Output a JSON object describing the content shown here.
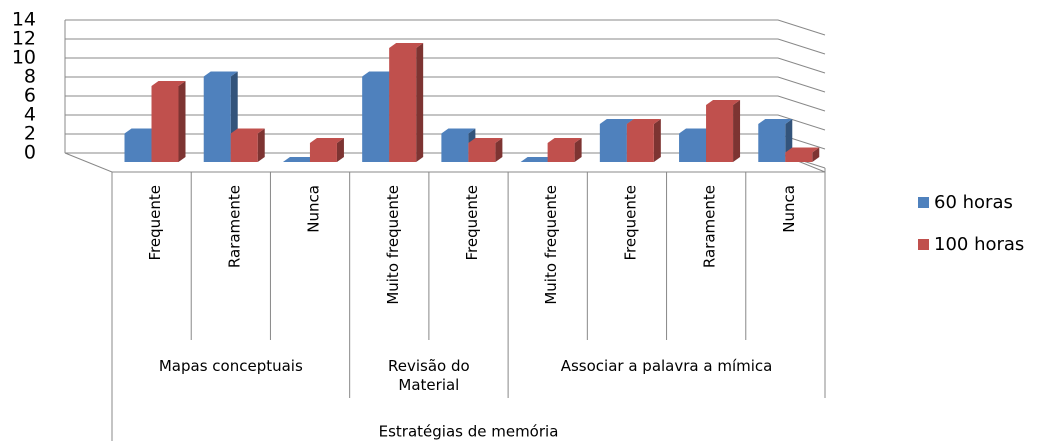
{
  "chart_data": {
    "type": "bar3d",
    "axis_title": "Estratégias de memória",
    "groups": [
      {
        "name": "Mapas conceptuais",
        "categories": [
          "Frequente",
          "Raramente",
          "Nunca"
        ]
      },
      {
        "name": "Revisão do Material",
        "categories": [
          "Muito frequente",
          "Frequente"
        ]
      },
      {
        "name": "Associar a palavra a mímica",
        "categories": [
          "Muito frequente",
          "Frequente",
          "Raramente",
          "Nunca"
        ]
      }
    ],
    "series": [
      {
        "name": "60 horas",
        "color": "#4f81bd",
        "values": [
          3,
          9,
          0,
          9,
          3,
          0,
          4,
          3,
          4
        ]
      },
      {
        "name": "100 horas",
        "color": "#c0504d",
        "values": [
          8,
          3,
          2,
          12,
          2,
          2,
          4,
          6,
          1
        ]
      }
    ],
    "ylim": [
      0,
      14
    ],
    "yticks": [
      0,
      2,
      4,
      6,
      8,
      10,
      12,
      14
    ],
    "grid": true,
    "legend": "right"
  }
}
